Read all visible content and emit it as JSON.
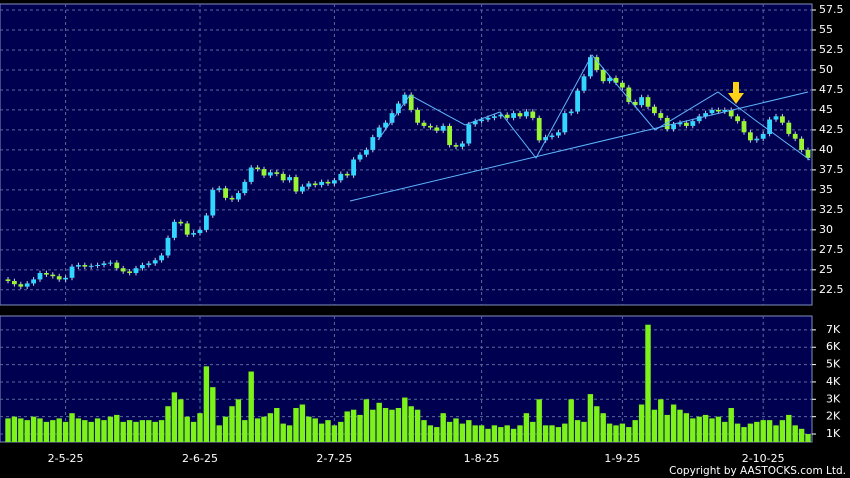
{
  "chart_data": {
    "type": "candlestick",
    "categories": [
      null,
      null,
      null,
      null,
      null,
      null,
      null,
      null,
      null,
      "2-5-25",
      null,
      null,
      null,
      null,
      null,
      null,
      null,
      null,
      null,
      null,
      null,
      null,
      null,
      null,
      null,
      null,
      null,
      null,
      null,
      null,
      "2-6-25",
      null,
      null,
      null,
      null,
      null,
      null,
      null,
      null,
      null,
      null,
      null,
      null,
      null,
      null,
      null,
      null,
      null,
      null,
      null,
      null,
      "2-7-25",
      null,
      null,
      null,
      null,
      null,
      null,
      null,
      null,
      null,
      null,
      null,
      null,
      null,
      null,
      null,
      null,
      null,
      null,
      null,
      null,
      null,
      null,
      "1-8-25",
      null,
      null,
      null,
      null,
      null,
      null,
      null,
      null,
      null,
      null,
      null,
      null,
      null,
      null,
      null,
      null,
      null,
      null,
      null,
      null,
      null,
      "1-9-25",
      null,
      null,
      null,
      null,
      null,
      null,
      null,
      null,
      null,
      null,
      null,
      null,
      null,
      null,
      null,
      null,
      null,
      null,
      null,
      null,
      null,
      "2-10-25",
      null,
      null,
      null,
      null,
      null,
      null,
      null
    ],
    "candles": [
      [
        23.8,
        24.1,
        23.3,
        23.6
      ],
      [
        23.6,
        23.9,
        22.9,
        23.2
      ],
      [
        23.2,
        23.5,
        22.6,
        22.9
      ],
      [
        22.9,
        23.6,
        22.6,
        23.3
      ],
      [
        23.3,
        24.1,
        23.0,
        23.8
      ],
      [
        23.8,
        24.9,
        23.5,
        24.6
      ],
      [
        24.6,
        24.9,
        24.1,
        24.4
      ],
      [
        24.4,
        24.7,
        23.9,
        24.2
      ],
      [
        24.2,
        24.5,
        23.5,
        23.8
      ],
      [
        23.8,
        24.3,
        23.5,
        24.0
      ],
      [
        24.0,
        25.7,
        23.7,
        25.4
      ],
      [
        25.4,
        25.9,
        25.1,
        25.6
      ],
      [
        25.6,
        25.9,
        25.1,
        25.4
      ],
      [
        25.4,
        25.8,
        25.1,
        25.5
      ],
      [
        25.5,
        25.9,
        25.2,
        25.6
      ],
      [
        25.6,
        26.1,
        25.3,
        25.8
      ],
      [
        25.8,
        26.2,
        25.5,
        25.9
      ],
      [
        25.9,
        26.2,
        24.9,
        25.2
      ],
      [
        25.2,
        25.5,
        24.5,
        24.8
      ],
      [
        24.8,
        25.1,
        24.3,
        24.6
      ],
      [
        24.6,
        25.5,
        24.3,
        25.2
      ],
      [
        25.2,
        25.9,
        24.9,
        25.6
      ],
      [
        25.6,
        26.1,
        25.3,
        25.8
      ],
      [
        25.8,
        26.5,
        25.5,
        26.2
      ],
      [
        26.2,
        27.1,
        25.9,
        26.8
      ],
      [
        26.8,
        29.3,
        26.5,
        29.0
      ],
      [
        29.0,
        31.3,
        28.7,
        31.0
      ],
      [
        31.0,
        31.3,
        30.5,
        30.8
      ],
      [
        30.8,
        31.1,
        29.1,
        29.4
      ],
      [
        29.4,
        29.9,
        29.1,
        29.6
      ],
      [
        29.6,
        30.3,
        29.3,
        30.0
      ],
      [
        30.0,
        32.1,
        29.7,
        31.8
      ],
      [
        31.8,
        35.3,
        31.5,
        35.0
      ],
      [
        35.0,
        35.5,
        34.7,
        35.2
      ],
      [
        35.2,
        35.5,
        33.7,
        34.0
      ],
      [
        34.0,
        34.3,
        33.5,
        33.8
      ],
      [
        33.8,
        34.9,
        33.5,
        34.6
      ],
      [
        34.6,
        36.3,
        34.3,
        36.0
      ],
      [
        36.0,
        38.1,
        35.7,
        37.8
      ],
      [
        37.8,
        38.1,
        37.3,
        37.6
      ],
      [
        37.6,
        37.9,
        36.5,
        36.8
      ],
      [
        36.8,
        37.5,
        36.5,
        37.2
      ],
      [
        37.2,
        37.5,
        36.7,
        37.0
      ],
      [
        37.0,
        37.3,
        35.9,
        36.2
      ],
      [
        36.2,
        36.9,
        35.9,
        36.6
      ],
      [
        36.6,
        36.9,
        34.5,
        34.8
      ],
      [
        34.8,
        35.7,
        34.5,
        35.4
      ],
      [
        35.4,
        36.1,
        35.1,
        35.8
      ],
      [
        35.8,
        36.1,
        35.3,
        35.6
      ],
      [
        35.6,
        36.3,
        35.3,
        36.0
      ],
      [
        36.0,
        36.3,
        35.5,
        35.8
      ],
      [
        35.8,
        36.5,
        35.5,
        36.2
      ],
      [
        36.2,
        37.3,
        35.9,
        37.0
      ],
      [
        37.0,
        37.3,
        36.5,
        36.8
      ],
      [
        36.8,
        39.1,
        36.5,
        38.8
      ],
      [
        38.8,
        39.7,
        38.5,
        39.4
      ],
      [
        39.4,
        40.3,
        39.1,
        40.0
      ],
      [
        40.0,
        41.9,
        39.7,
        41.6
      ],
      [
        41.6,
        43.1,
        41.3,
        42.8
      ],
      [
        42.8,
        43.7,
        42.5,
        43.4
      ],
      [
        43.4,
        44.9,
        43.1,
        44.6
      ],
      [
        44.6,
        46.1,
        44.3,
        45.8
      ],
      [
        45.8,
        47.2,
        45.5,
        46.9
      ],
      [
        46.9,
        47.2,
        44.7,
        45.0
      ],
      [
        45.0,
        45.3,
        43.1,
        43.4
      ],
      [
        43.4,
        43.7,
        42.7,
        43.0
      ],
      [
        43.0,
        43.3,
        42.5,
        42.8
      ],
      [
        42.8,
        43.1,
        42.1,
        42.4
      ],
      [
        42.4,
        43.3,
        42.1,
        43.0
      ],
      [
        43.0,
        43.3,
        40.3,
        40.6
      ],
      [
        40.6,
        40.9,
        40.1,
        40.4
      ],
      [
        40.4,
        41.1,
        40.1,
        40.8
      ],
      [
        40.8,
        43.5,
        40.5,
        43.2
      ],
      [
        43.2,
        43.9,
        42.9,
        43.6
      ],
      [
        43.6,
        44.1,
        43.3,
        43.8
      ],
      [
        43.8,
        44.3,
        43.5,
        44.0
      ],
      [
        44.0,
        44.5,
        43.7,
        44.2
      ],
      [
        44.2,
        44.7,
        43.9,
        44.4
      ],
      [
        44.4,
        44.7,
        43.7,
        44.0
      ],
      [
        44.0,
        44.9,
        43.7,
        44.6
      ],
      [
        44.6,
        44.9,
        43.9,
        44.2
      ],
      [
        44.2,
        45.1,
        43.9,
        44.8
      ],
      [
        44.8,
        45.1,
        43.7,
        44.0
      ],
      [
        44.0,
        44.3,
        40.9,
        41.2
      ],
      [
        41.2,
        41.9,
        40.9,
        41.6
      ],
      [
        41.6,
        42.1,
        41.3,
        41.8
      ],
      [
        41.8,
        42.5,
        41.5,
        42.2
      ],
      [
        42.2,
        44.9,
        41.9,
        44.6
      ],
      [
        44.6,
        45.1,
        44.3,
        44.8
      ],
      [
        44.8,
        47.7,
        44.5,
        47.4
      ],
      [
        47.4,
        49.5,
        47.1,
        49.2
      ],
      [
        49.2,
        51.9,
        48.9,
        51.6
      ],
      [
        51.6,
        51.9,
        49.7,
        50.0
      ],
      [
        50.0,
        50.3,
        48.3,
        48.6
      ],
      [
        48.6,
        49.3,
        48.3,
        49.0
      ],
      [
        49.0,
        49.3,
        48.1,
        48.4
      ],
      [
        48.4,
        48.7,
        47.5,
        47.8
      ],
      [
        47.8,
        48.1,
        45.7,
        46.0
      ],
      [
        46.0,
        46.3,
        45.3,
        45.6
      ],
      [
        45.6,
        46.9,
        45.3,
        46.6
      ],
      [
        46.6,
        46.9,
        45.1,
        45.4
      ],
      [
        45.4,
        45.7,
        44.3,
        44.6
      ],
      [
        44.6,
        44.9,
        43.7,
        44.0
      ],
      [
        44.0,
        44.3,
        42.3,
        42.6
      ],
      [
        42.6,
        43.5,
        42.3,
        43.2
      ],
      [
        43.2,
        43.7,
        42.9,
        43.4
      ],
      [
        43.4,
        43.7,
        42.7,
        43.0
      ],
      [
        43.0,
        43.9,
        42.7,
        43.6
      ],
      [
        43.6,
        44.5,
        43.3,
        44.2
      ],
      [
        44.2,
        44.9,
        43.9,
        44.6
      ],
      [
        44.6,
        45.3,
        44.3,
        45.0
      ],
      [
        45.0,
        45.3,
        44.5,
        44.8
      ],
      [
        44.8,
        45.3,
        44.5,
        45.0
      ],
      [
        45.0,
        45.3,
        43.9,
        44.2
      ],
      [
        44.2,
        44.5,
        43.3,
        43.6
      ],
      [
        43.6,
        43.9,
        41.9,
        42.2
      ],
      [
        42.2,
        42.5,
        40.9,
        41.2
      ],
      [
        41.2,
        41.7,
        40.9,
        41.4
      ],
      [
        41.4,
        42.3,
        41.1,
        42.0
      ],
      [
        42.0,
        44.1,
        41.7,
        43.8
      ],
      [
        43.8,
        44.5,
        43.5,
        44.2
      ],
      [
        44.2,
        44.5,
        43.1,
        43.4
      ],
      [
        43.4,
        43.7,
        41.7,
        42.0
      ],
      [
        42.0,
        42.3,
        41.1,
        41.4
      ],
      [
        41.4,
        41.7,
        39.7,
        40.0
      ],
      [
        40.0,
        40.3,
        38.7,
        39.0
      ]
    ],
    "up_color": "#33d6ff",
    "down_color": "#99f533",
    "ylim": [
      20.6,
      58.25
    ],
    "yticks": [
      22.5,
      25,
      27.5,
      30,
      32.5,
      35,
      37.5,
      40,
      42.5,
      45,
      47.5,
      50,
      52.5,
      55,
      57.5
    ],
    "volume": [
      1900,
      2000,
      1900,
      1800,
      2000,
      1900,
      1700,
      1800,
      1900,
      1700,
      2200,
      1900,
      1800,
      1700,
      1900,
      1800,
      2000,
      2100,
      1700,
      1800,
      1700,
      1800,
      1800,
      1700,
      1800,
      2600,
      3400,
      3000,
      2000,
      1700,
      2200,
      4900,
      3700,
      1500,
      2000,
      2600,
      3000,
      1800,
      4600,
      1900,
      2000,
      2200,
      2500,
      1600,
      1500,
      2500,
      2700,
      2000,
      1900,
      1600,
      1800,
      1500,
      1700,
      2300,
      2400,
      2100,
      3000,
      2400,
      2800,
      2500,
      2400,
      2500,
      3100,
      2600,
      2400,
      1800,
      1500,
      1400,
      2200,
      1700,
      1900,
      1600,
      1800,
      1500,
      1500,
      1300,
      1500,
      1400,
      1500,
      1300,
      1500,
      2200,
      1700,
      3000,
      1500,
      1500,
      1400,
      1600,
      3000,
      1800,
      1700,
      3300,
      2600,
      2200,
      1600,
      1500,
      1600,
      1400,
      1800,
      2700,
      7300,
      2400,
      3000,
      2100,
      2700,
      2400,
      2200,
      1900,
      2000,
      2100,
      1900,
      2000,
      1700,
      2500,
      1600,
      1400,
      1600,
      1700,
      1800,
      1800,
      1500,
      1800,
      2100,
      1500,
      1300,
      1000
    ],
    "volume_color": "#7cf21a",
    "vlim": [
      540,
      7800
    ],
    "vticks": [
      {
        "value": 1000,
        "label": "1K"
      },
      {
        "value": 2000,
        "label": "2K"
      },
      {
        "value": 3000,
        "label": "3K"
      },
      {
        "value": 4000,
        "label": "4K"
      },
      {
        "value": 5000,
        "label": "5K"
      },
      {
        "value": 6000,
        "label": "6K"
      },
      {
        "value": 7000,
        "label": "7K"
      }
    ],
    "grid": true,
    "copyright": "Copyright by AASTOCKS.com Ltd."
  }
}
